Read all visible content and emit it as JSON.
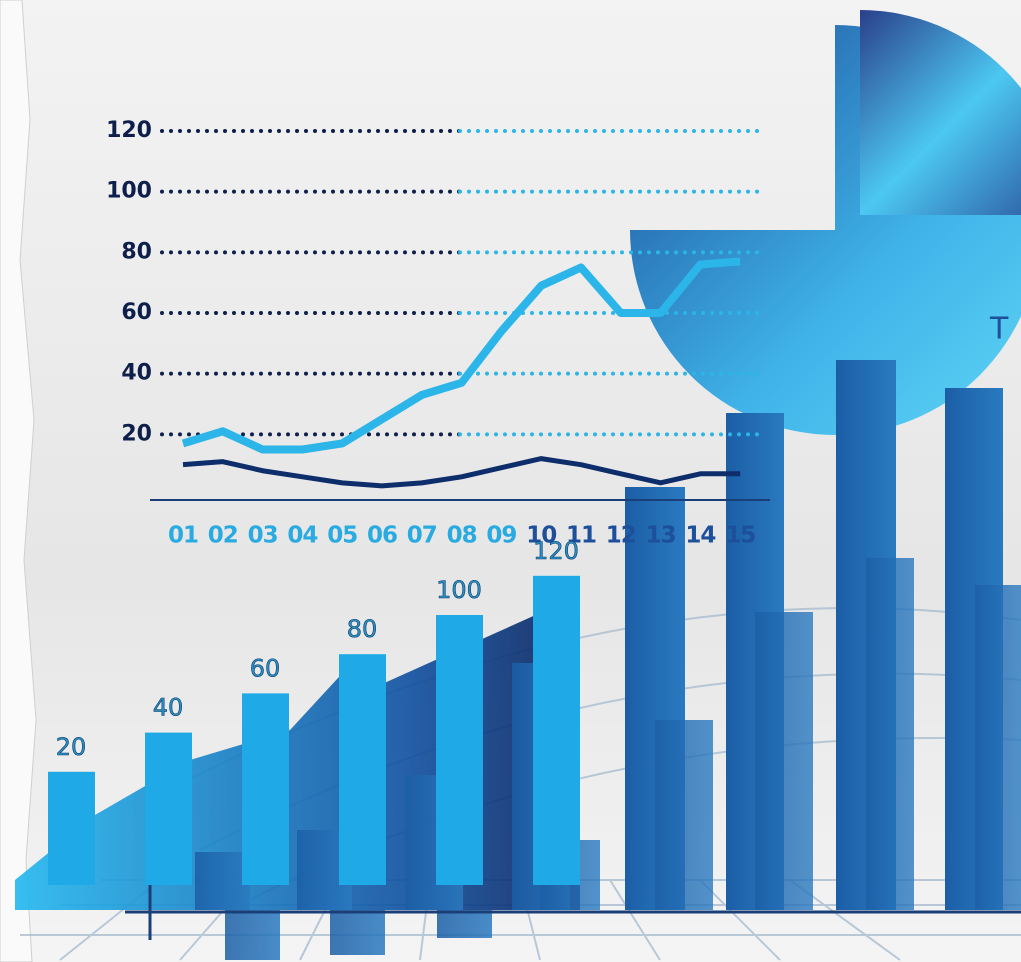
{
  "chart_data": [
    {
      "type": "line",
      "categories": [
        "01",
        "02",
        "03",
        "04",
        "05",
        "06",
        "07",
        "08",
        "09",
        "10",
        "11",
        "12",
        "13",
        "14",
        "15"
      ],
      "series": [
        {
          "color": "#2bb5e8",
          "values": [
            17,
            21,
            15,
            15,
            17,
            25,
            33,
            37,
            54,
            69,
            75,
            60,
            60,
            76,
            77
          ]
        },
        {
          "color": "#0d2d6b",
          "values": [
            10,
            11,
            8,
            6,
            4,
            3,
            4,
            6,
            9,
            12,
            10,
            7,
            4,
            7,
            7
          ]
        }
      ],
      "ylim": [
        0,
        120
      ],
      "yticks": [
        20,
        40,
        60,
        80,
        100,
        120
      ],
      "grid": true
    },
    {
      "type": "bar",
      "values": [
        20,
        40,
        60,
        80,
        100,
        120
      ],
      "color": "#1fa9e6"
    }
  ],
  "pie_label": "T"
}
